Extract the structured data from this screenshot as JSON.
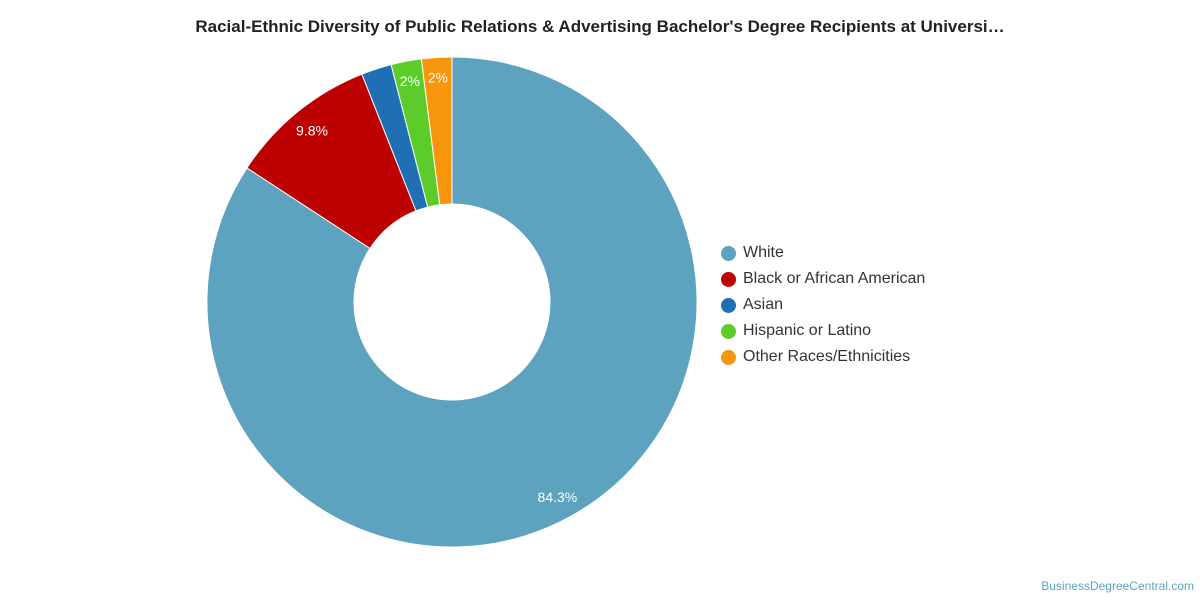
{
  "chart_data": {
    "type": "pie",
    "variant": "donut",
    "title": "Racial-Ethnic Diversity of Public Relations & Advertising Bachelor's Degree Recipients at Universi…",
    "slices": [
      {
        "label": "White",
        "value": 84.3,
        "display": "84.3%",
        "color": "#5da2bf"
      },
      {
        "label": "Black or African American",
        "value": 9.8,
        "display": "9.8%",
        "color": "#bd0000"
      },
      {
        "label": "Asian",
        "value": 2.0,
        "display": "",
        "color": "#1f6fb5"
      },
      {
        "label": "Hispanic or Latino",
        "value": 2.0,
        "display": "2%",
        "color": "#5ccc2a"
      },
      {
        "label": "Other Races/Ethnicities",
        "value": 2.0,
        "display": "2%",
        "color": "#f7960d"
      }
    ],
    "legend_position": "right"
  },
  "watermark": "BusinessDegreeCentral.com"
}
